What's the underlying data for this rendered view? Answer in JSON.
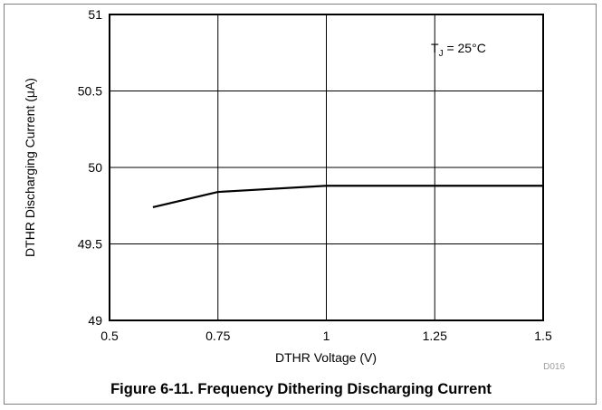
{
  "chart_data": {
    "type": "line",
    "xlabel": "DTHR Voltage (V)",
    "ylabel": "DTHR Discharging Current (μA)",
    "xlim": [
      0.5,
      1.5
    ],
    "ylim": [
      49,
      51
    ],
    "x_ticks": [
      "0.5",
      "0.75",
      "1",
      "1.25",
      "1.5"
    ],
    "y_ticks": [
      "49",
      "49.5",
      "50",
      "50.5",
      "51"
    ],
    "grid": true,
    "annotation": {
      "prefix": "T",
      "subscript": "J",
      "suffix": " = 25°C"
    },
    "code": "D016",
    "series": [
      {
        "x": [
          0.6,
          0.75,
          1.0,
          1.25,
          1.5
        ],
        "y": [
          49.74,
          49.84,
          49.88,
          49.88,
          49.88
        ],
        "color": "#000000"
      }
    ]
  },
  "figure_caption": "Figure 6-11. Frequency Dithering Discharging Current"
}
